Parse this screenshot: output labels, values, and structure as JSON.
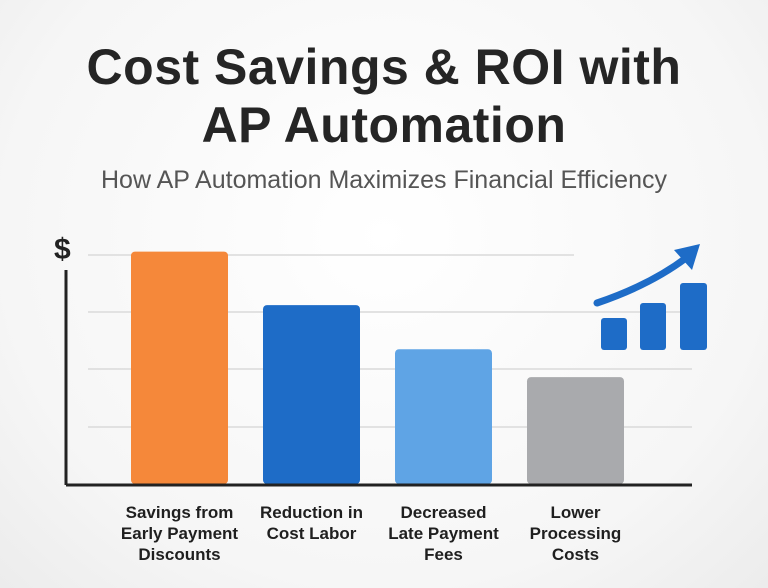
{
  "title_line1": "Cost Savings & ROI with",
  "title_line2": "AP Automation",
  "subtitle": "How AP Automation Maximizes Financial Efficiency",
  "chart_data": {
    "type": "bar",
    "ylabel": "$",
    "categories": [
      [
        "Savings from",
        "Early Payment",
        "Discounts"
      ],
      [
        "Reduction in",
        "Cost Labor"
      ],
      [
        "Decreased",
        "Late Payment",
        "Fees"
      ],
      [
        "Lower",
        "Processing",
        "Costs"
      ]
    ],
    "values": [
      100,
      77,
      58,
      46
    ],
    "ylim": [
      0,
      105
    ],
    "grid": true,
    "colors": [
      "#F5883A",
      "#1E6CC7",
      "#5FA4E5",
      "#A9AAAD"
    ],
    "icon": "growth-chart-icon",
    "icon_color": "#1E6CC7"
  }
}
